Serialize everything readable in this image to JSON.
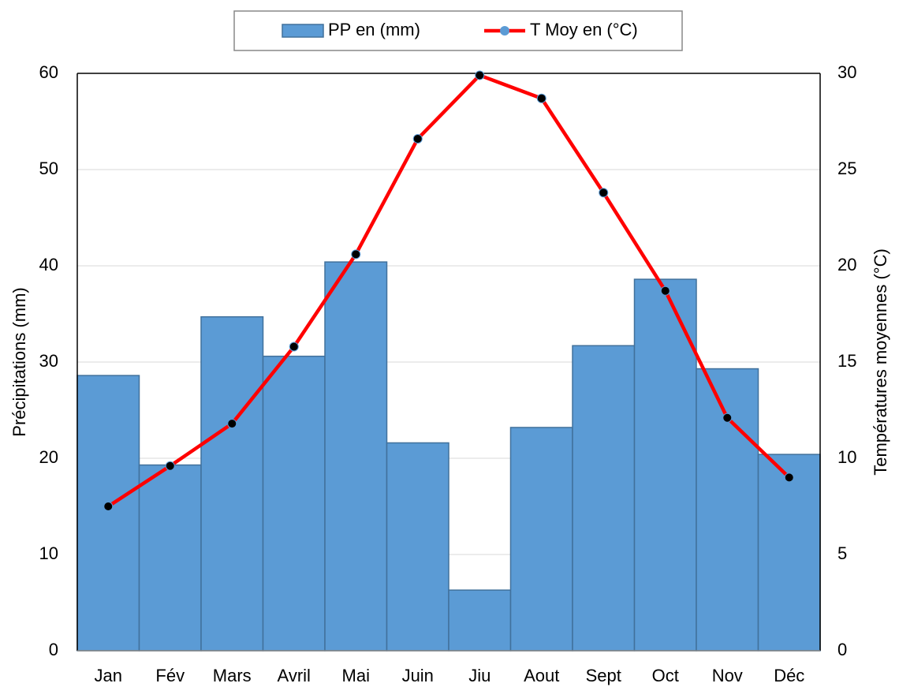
{
  "chart_data": {
    "type": "combo",
    "categories": [
      "Jan",
      "Fév",
      "Mars",
      "Avril",
      "Mai",
      "Juin",
      "Jiu",
      "Aout",
      "Sept",
      "Oct",
      "Nov",
      "Déc"
    ],
    "series": [
      {
        "name": "PP en (mm)",
        "type": "bar",
        "axis": "y",
        "color": "#5b9bd5",
        "values": [
          28.6,
          19.3,
          34.7,
          30.6,
          40.4,
          21.6,
          6.3,
          23.2,
          31.7,
          38.6,
          29.3,
          20.4
        ]
      },
      {
        "name": "T Moy en (°C)",
        "type": "line",
        "axis": "y2",
        "color": "#ff0000",
        "values": [
          7.5,
          9.6,
          11.8,
          15.8,
          20.6,
          26.6,
          29.9,
          28.7,
          23.8,
          18.7,
          12.1,
          9.0
        ]
      }
    ],
    "y_label": "Précipitations  (mm)",
    "y2_label": "Températures moyennes (°C)",
    "ylim": [
      0,
      60
    ],
    "yticks": [
      0,
      10,
      20,
      30,
      40,
      50,
      60
    ],
    "y2lim": [
      0,
      30
    ],
    "y2ticks": [
      0,
      5,
      10,
      15,
      20,
      25,
      30
    ],
    "grid": true,
    "legend": "top"
  }
}
